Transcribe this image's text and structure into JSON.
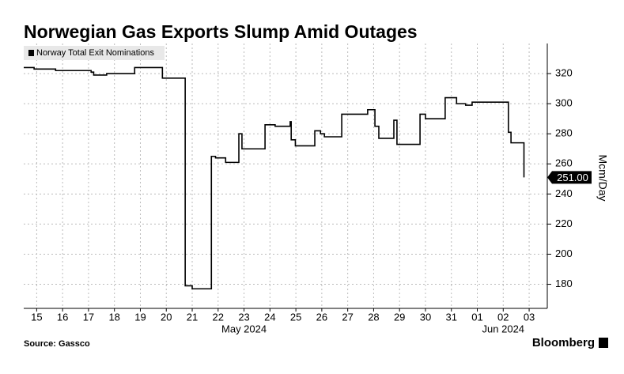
{
  "chart_data": {
    "type": "step",
    "title": "Norwegian Gas Exports Slump Amid Outages",
    "ylabel": "Mcm/Day",
    "source": "Source: Gassco",
    "brand": "Bloomberg",
    "legend": "top-left",
    "grid": true,
    "series": [
      {
        "name": "Norway Total Exit Nominations",
        "color": "#000000",
        "x": [
          -0.5,
          -0.1,
          0.73,
          2.1,
          2.2,
          2.7,
          3.78,
          4.85,
          5.73,
          6.0,
          6.74,
          6.9,
          7.29,
          7.8,
          7.92,
          8.81,
          9.2,
          9.78,
          9.82,
          9.98,
          10.73,
          10.95,
          11.1,
          11.77,
          12.77,
          13.05,
          13.2,
          13.78,
          13.9,
          14.79,
          15.0,
          15.76,
          16.2,
          16.55,
          16.8,
          18.2,
          18.3,
          18.8
        ],
        "values": [
          324,
          323,
          322,
          321,
          319,
          320,
          324,
          317,
          179,
          177,
          265,
          264,
          261,
          280,
          270,
          286,
          285,
          288,
          276,
          272,
          282,
          280,
          278,
          293,
          296,
          285,
          277,
          289,
          273,
          293,
          290,
          304,
          300,
          299,
          301,
          281,
          274,
          251
        ],
        "last_value_label": "251.00"
      }
    ],
    "xlim": [
      -0.5,
      19.7
    ],
    "xticks": [
      {
        "value": 0,
        "label": "15"
      },
      {
        "value": 1,
        "label": "16"
      },
      {
        "value": 2,
        "label": "17"
      },
      {
        "value": 3,
        "label": "18"
      },
      {
        "value": 4,
        "label": "19"
      },
      {
        "value": 5,
        "label": "20"
      },
      {
        "value": 6,
        "label": "21"
      },
      {
        "value": 7,
        "label": "22"
      },
      {
        "value": 8,
        "label": "23"
      },
      {
        "value": 9,
        "label": "24"
      },
      {
        "value": 10,
        "label": "25"
      },
      {
        "value": 11,
        "label": "26"
      },
      {
        "value": 12,
        "label": "27"
      },
      {
        "value": 13,
        "label": "28"
      },
      {
        "value": 14,
        "label": "29"
      },
      {
        "value": 15,
        "label": "30"
      },
      {
        "value": 16,
        "label": "31"
      },
      {
        "value": 17,
        "label": "01"
      },
      {
        "value": 18,
        "label": "02"
      },
      {
        "value": 19,
        "label": "03"
      }
    ],
    "month_ticks": [
      {
        "value": 8,
        "label": "May 2024"
      },
      {
        "value": 18,
        "label": "Jun 2024"
      }
    ],
    "ylim": [
      164,
      340
    ],
    "yticks": [
      180,
      200,
      220,
      240,
      260,
      280,
      300,
      320
    ]
  }
}
